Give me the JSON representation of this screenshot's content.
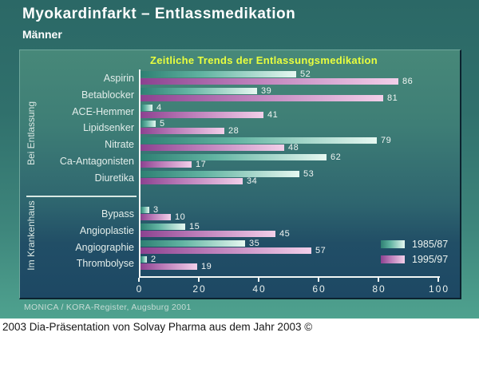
{
  "header": {
    "title": "Myokardinfarkt – Entlassmedikation",
    "subtitle": "Männer"
  },
  "footer": {
    "source": "MONICA / KORA-Register, Augsburg 2001",
    "caption": "2003 Dia-Präsentation von Solvay Pharma aus dem Jahr 2003 ©"
  },
  "chart_data": {
    "type": "bar",
    "orientation": "horizontal",
    "title": "Zeitliche Trends der Entlassungsmedikation",
    "xlim": [
      0,
      100
    ],
    "x_ticks": [
      0,
      20,
      40,
      60,
      80,
      100
    ],
    "legend_position": "right-bottom",
    "legend": [
      {
        "label": "1985/87",
        "color_dark": "#2E8073",
        "color_mid": "#62B4A2",
        "color_light": "#E6F8F1"
      },
      {
        "label": "1995/97",
        "color_dark": "#8C4290",
        "color_mid": "#BA7BB8",
        "color_light": "#F2CFE9"
      }
    ],
    "groups": [
      {
        "label": "Bei Entlassung",
        "categories": [
          "Aspirin",
          "Betablocker",
          "ACE-Hemmer",
          "Lipidsenker",
          "Nitrate",
          "Ca-Antagonisten",
          "Diuretika"
        ],
        "series": [
          {
            "name": "1985/87",
            "values": [
              52,
              39,
              4,
              5,
              79,
              62,
              53
            ]
          },
          {
            "name": "1995/97",
            "values": [
              86,
              81,
              41,
              28,
              48,
              17,
              34
            ]
          }
        ]
      },
      {
        "label": "Im Krankenhaus",
        "categories": [
          "Bypass",
          "Angioplastie",
          "Angiographie",
          "Thrombolyse"
        ],
        "series": [
          {
            "name": "1985/87",
            "values": [
              3,
              15,
              35,
              2
            ]
          },
          {
            "name": "1995/97",
            "values": [
              10,
              45,
              57,
              19
            ]
          }
        ]
      }
    ]
  }
}
